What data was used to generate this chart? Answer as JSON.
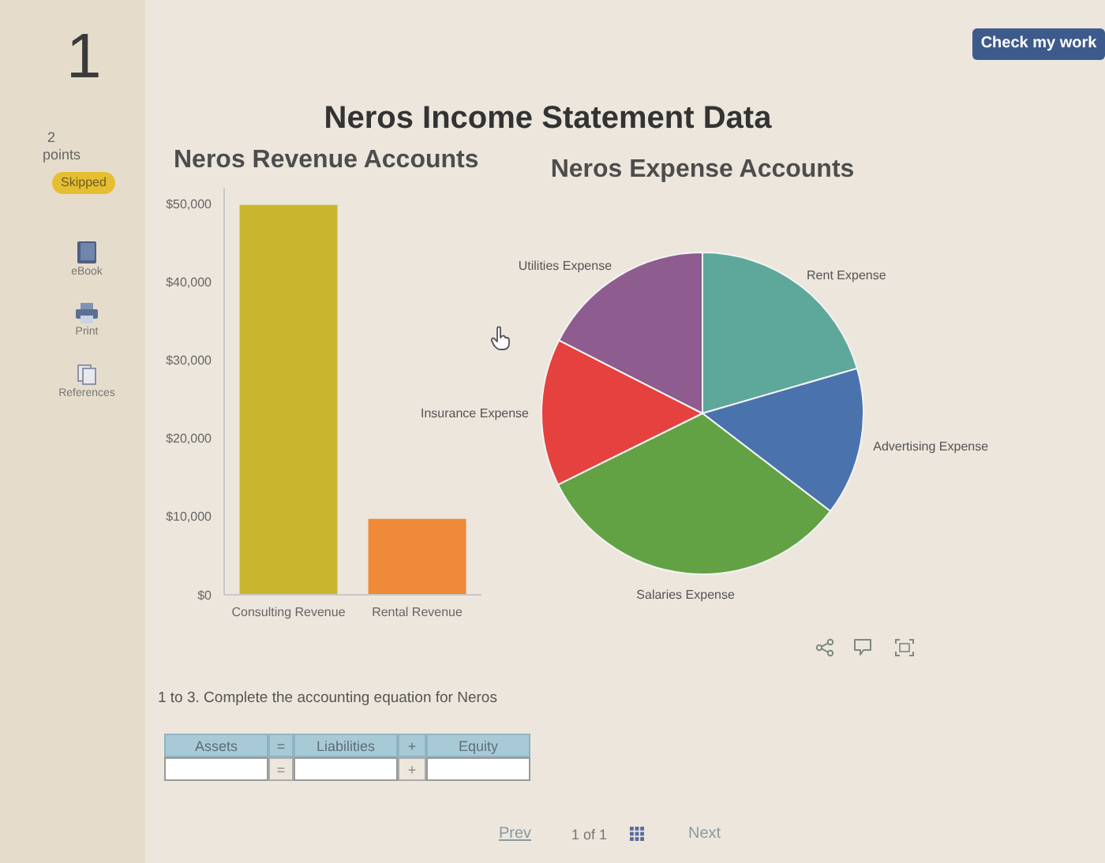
{
  "chart_data": [
    {
      "type": "other",
      "title": "Neros Income Statement Data",
      "annotations": [
        "1",
        "2",
        "points",
        "Skipped",
        "eBook",
        "Print",
        "References",
        "Check my work",
        "1 to 3. Complete the accounting equation for Neros",
        "Assets",
        "=",
        "Liabilities",
        "+",
        "Equity",
        "=",
        "+",
        "Prev",
        "1 of 1",
        "Next"
      ]
    },
    {
      "type": "bar",
      "title": "Neros Revenue Accounts",
      "categories": [
        "Consulting Revenue",
        "Rental Revenue"
      ],
      "values": [
        49800,
        9700
      ],
      "colors": [
        "#c9b62e",
        "#ef8a38"
      ],
      "ylim": [
        0,
        52000
      ],
      "yticks": [
        {
          "value": 0,
          "label": "$0"
        },
        {
          "value": 10000,
          "label": "$10,000"
        },
        {
          "value": 20000,
          "label": "$20,000"
        },
        {
          "value": 30000,
          "label": "$30,000"
        },
        {
          "value": 40000,
          "label": "$40,000"
        },
        {
          "value": 50000,
          "label": "$50,000"
        }
      ]
    },
    {
      "type": "pie",
      "title": "Neros Expense Accounts",
      "categories": [
        "Rent Expense",
        "Advertising Expense",
        "Salaries Expense",
        "Insurance Expense",
        "Utilities Expense"
      ],
      "values": [
        20.5,
        14.9,
        32.3,
        14.8,
        17.5
      ],
      "colors": [
        "#5ea79b",
        "#4a73ae",
        "#62a244",
        "#e5423f",
        "#8e5c8e"
      ]
    }
  ]
}
